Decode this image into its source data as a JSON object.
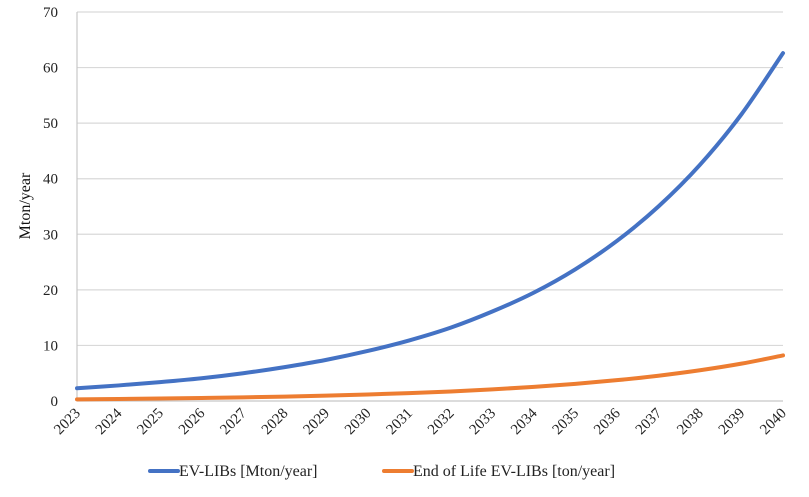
{
  "chart_data": {
    "type": "line",
    "title": "",
    "xlabel": "",
    "ylabel": "Mton/year",
    "ylim": [
      0,
      70
    ],
    "yticks": [
      "0",
      "10",
      "20",
      "30",
      "40",
      "50",
      "60",
      "70"
    ],
    "categories": [
      "2023",
      "2024",
      "2025",
      "2026",
      "2027",
      "2028",
      "2029",
      "2030",
      "2031",
      "2032",
      "2033",
      "2034",
      "2035",
      "2036",
      "2037",
      "2038",
      "2039",
      "2040"
    ],
    "grid": true,
    "legend": "bottom",
    "series": [
      {
        "name": "EV-LIBs [Mton/year]",
        "color": "#4472C4",
        "values": [
          2.3,
          2.8,
          3.4,
          4.1,
          5.0,
          6.1,
          7.4,
          9.0,
          10.9,
          13.2,
          16.1,
          19.5,
          23.7,
          28.8,
          35.0,
          42.5,
          51.6,
          62.6
        ]
      },
      {
        "name": "End of Life EV-LIBs [ton/year]",
        "color": "#ED7D31",
        "values": [
          0.3,
          0.36,
          0.44,
          0.54,
          0.65,
          0.79,
          0.96,
          1.17,
          1.42,
          1.72,
          2.09,
          2.54,
          3.09,
          3.75,
          4.55,
          5.53,
          6.72,
          8.2
        ]
      }
    ]
  }
}
